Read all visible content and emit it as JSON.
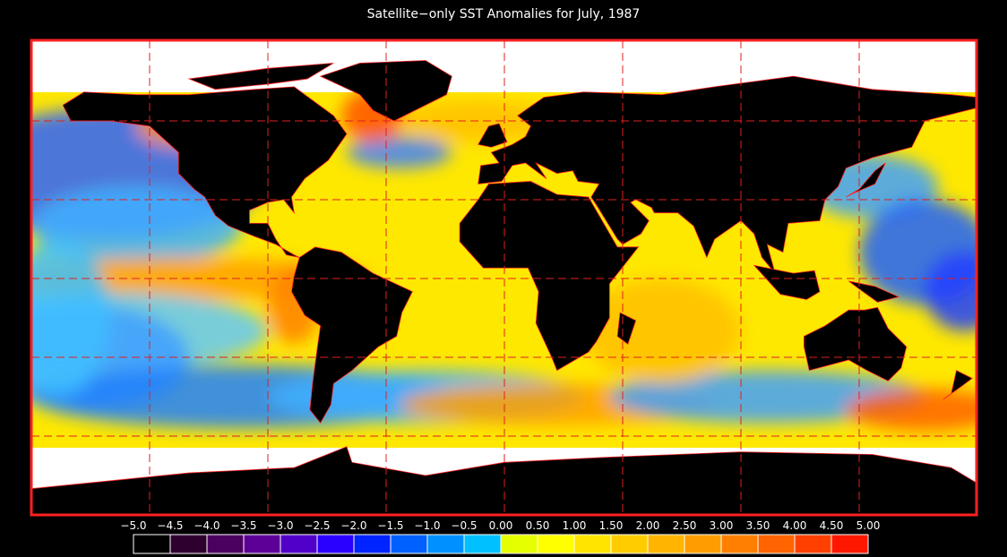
{
  "title": "Satellite−only SST Anomalies for July, 1987",
  "colorbar": {
    "labels": [
      "−5.0",
      "−4.5",
      "−4.0",
      "−3.5",
      "−3.0",
      "−2.5",
      "−2.0",
      "−1.5",
      "−1.0",
      "−0.5",
      "0.00",
      "0.50",
      "1.00",
      "1.50",
      "2.00",
      "2.50",
      "3.00",
      "3.50",
      "4.00",
      "4.50",
      "5.00"
    ],
    "colors": [
      "#000000",
      "#2e0030",
      "#4c0060",
      "#5c0098",
      "#5000c8",
      "#2a00ff",
      "#0024ff",
      "#0060ff",
      "#0090ff",
      "#00c0ff",
      "#e6ff00",
      "#ffff00",
      "#ffe400",
      "#ffcc00",
      "#ffb400",
      "#ff9c00",
      "#ff8000",
      "#ff6400",
      "#ff4000",
      "#ff1800"
    ]
  }
}
